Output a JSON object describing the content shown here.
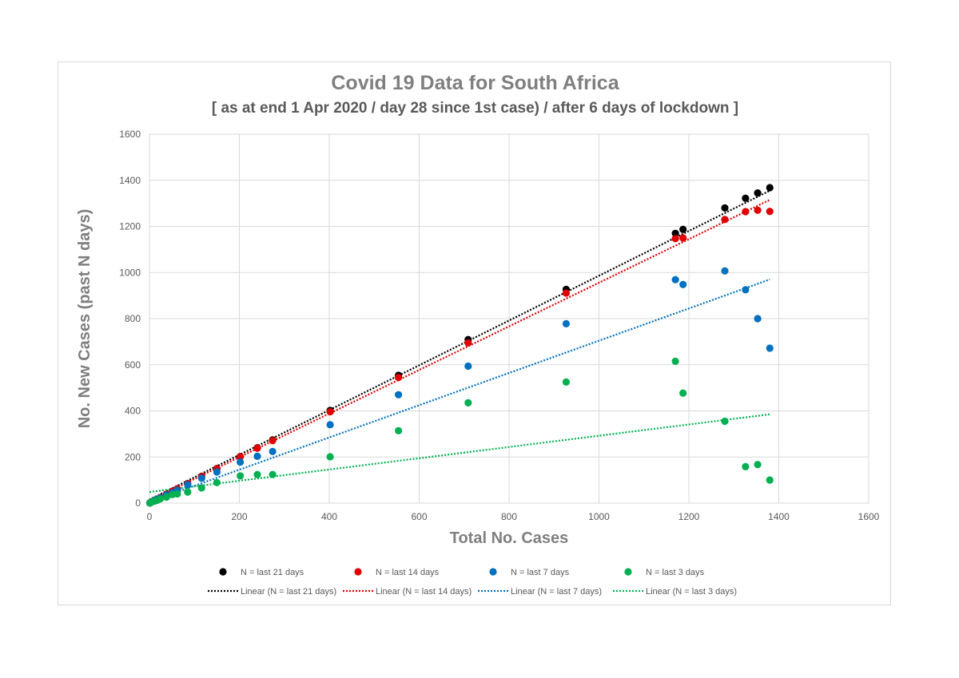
{
  "chart_data": {
    "type": "scatter",
    "title": "Covid 19 Data for South Africa",
    "subtitle": "[ as at end 1 Apr 2020 / day 28 since 1st case) / after 6 days of lockdown ]",
    "xlabel": "Total No. Cases",
    "ylabel": "No. New Cases (past N days)",
    "xlim": [
      0,
      1600
    ],
    "ylim": [
      0,
      1600
    ],
    "xticks": [
      0,
      200,
      400,
      600,
      800,
      1000,
      1200,
      1400,
      1600
    ],
    "yticks": [
      0,
      200,
      400,
      600,
      800,
      1000,
      1200,
      1400,
      1600
    ],
    "grid": true,
    "legend_position": "bottom",
    "x": [
      1,
      3,
      7,
      13,
      17,
      24,
      38,
      51,
      62,
      85,
      116,
      150,
      202,
      240,
      274,
      402,
      554,
      709,
      927,
      1170,
      1187,
      1280,
      1326,
      1353,
      1380
    ],
    "series": [
      {
        "name": "N = last 21 days",
        "color": "#000000",
        "values": [
          1,
          3,
          7,
          13,
          17,
          24,
          38,
          51,
          62,
          85,
          116,
          150,
          202,
          240,
          274,
          402,
          554,
          709,
          927,
          1170,
          1187,
          1280,
          1322,
          1345,
          1368
        ]
      },
      {
        "name": "N = last 14 days",
        "color": "#e00000",
        "values": [
          1,
          3,
          7,
          13,
          17,
          24,
          38,
          51,
          62,
          84,
          115,
          149,
          201,
          238,
          271,
          396,
          545,
          695,
          911,
          1147,
          1150,
          1230,
          1264,
          1270,
          1265
        ]
      },
      {
        "name": "N = last 7 days",
        "color": "#0070c0",
        "values": [
          1,
          3,
          7,
          13,
          16,
          22,
          35,
          45,
          56,
          80,
          108,
          135,
          178,
          203,
          224,
          340,
          470,
          594,
          778,
          969,
          948,
          1007,
          925,
          800,
          672
        ]
      },
      {
        "name": "N = last 3 days",
        "color": "#00b050",
        "values": [
          1,
          3,
          6,
          10,
          12,
          18,
          26,
          37,
          40,
          48,
          66,
          89,
          118,
          124,
          124,
          201,
          314,
          435,
          525,
          615,
          477,
          355,
          158,
          167,
          100
        ]
      }
    ],
    "trendlines": [
      {
        "name": "Linear (N = last 21 days)",
        "color": "#000000",
        "x0": 0,
        "y0": 15,
        "x1": 1380,
        "y1": 1355
      },
      {
        "name": "Linear (N = last 14 days)",
        "color": "#e00000",
        "x0": 0,
        "y0": 10,
        "x1": 1380,
        "y1": 1315
      },
      {
        "name": "Linear (N = last 7 days)",
        "color": "#0070c0",
        "x0": 0,
        "y0": 5,
        "x1": 1380,
        "y1": 970
      },
      {
        "name": "Linear (N = last 3 days)",
        "color": "#00b050",
        "x0": 0,
        "y0": 48,
        "x1": 1380,
        "y1": 385
      }
    ]
  }
}
